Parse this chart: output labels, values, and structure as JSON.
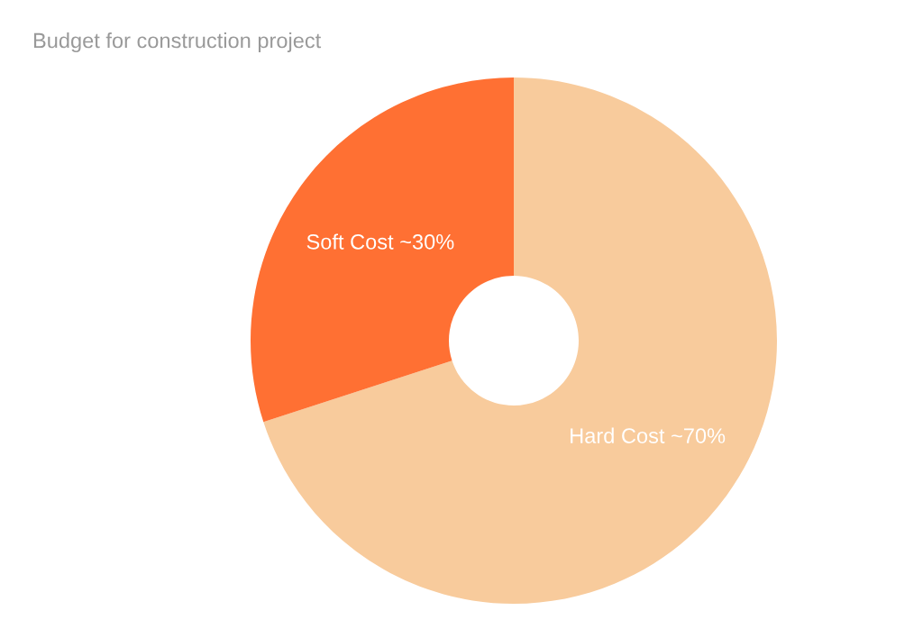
{
  "chart_data": {
    "type": "donut",
    "title": "Budget for construction project",
    "categories": [
      "Hard Cost",
      "Soft Cost"
    ],
    "values": [
      70,
      30
    ],
    "value_labels": [
      "~70%",
      "~30%"
    ],
    "colors": [
      "#f8cb9c",
      "#ff7033"
    ],
    "legend": false
  }
}
